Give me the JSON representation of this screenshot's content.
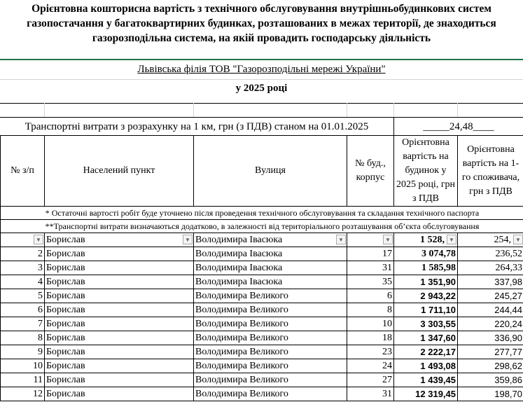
{
  "title": "Орієнтовна кошторисна вартість з технічного обслуговування внутрішньобудинкових систем газопостачання у багатоквартирних будинках, розташованих в межах території, де знаходиться газорозподільна система, на якій провадить господарську діяльність",
  "company": "Львівська  філія ТОВ \"Газорозподільні мережі України\"",
  "year": "у 2025 році",
  "transport": {
    "label": "Транспортні витрати з розрахунку на 1 км, грн (з ПДВ) станом на 01.01.2025",
    "value": "_____24,48____"
  },
  "headers": [
    "№ з/п",
    "Населений пункт",
    "Вулиця",
    "№ буд., корпус",
    "Орієнтовна вартість на будинок у 2025 році, грн з ПДВ",
    "Орієнтовна вартість на 1-го споживача, грн з ПДВ"
  ],
  "notes": [
    "* Остаточні вартості робіт буде уточнено після проведення технічного обслуговування та складання технічного паспорта",
    "**Транспортні витрати визначаються додатково, в залежності від територіального розташування об’єкта обслуговування"
  ],
  "filter_icon": "dropdown-arrow",
  "rows": [
    {
      "n": "",
      "city": "Борислав",
      "street": "Володимира Івасюка",
      "bld": "",
      "total": "1 528,",
      "per": "254,"
    },
    {
      "n": "2",
      "city": "Борислав",
      "street": "Володимира Івасюка",
      "bld": "17",
      "total": "3 074,78",
      "per": "236,52"
    },
    {
      "n": "3",
      "city": "Борислав",
      "street": "Володимира Івасюка",
      "bld": "31",
      "total": "1 585,98",
      "per": "264,33"
    },
    {
      "n": "4",
      "city": "Борислав",
      "street": "Володимира Івасюка",
      "bld": "35",
      "total": "1 351,90",
      "per": "337,98"
    },
    {
      "n": "5",
      "city": "Борислав",
      "street": "Володимира Великого",
      "bld": "6",
      "total": "2 943,22",
      "per": "245,27"
    },
    {
      "n": "6",
      "city": "Борислав",
      "street": "Володимира Великого",
      "bld": "8",
      "total": "1 711,10",
      "per": "244,44"
    },
    {
      "n": "7",
      "city": "Борислав",
      "street": "Володимира Великого",
      "bld": "10",
      "total": "3 303,55",
      "per": "220,24"
    },
    {
      "n": "8",
      "city": "Борислав",
      "street": "Володимира Великого",
      "bld": "18",
      "total": "1 347,60",
      "per": "336,90"
    },
    {
      "n": "9",
      "city": "Борислав",
      "street": "Володимира Великого",
      "bld": "23",
      "total": "2 222,17",
      "per": "277,77"
    },
    {
      "n": "10",
      "city": "Борислав",
      "street": "Володимира Великого",
      "bld": "24",
      "total": "1 493,08",
      "per": "298,62"
    },
    {
      "n": "11",
      "city": "Борислав",
      "street": "Володимира Великого",
      "bld": "27",
      "total": "1 439,45",
      "per": "359,86"
    },
    {
      "n": "12",
      "city": "Борислав",
      "street": "Володимира Великого",
      "bld": "31",
      "total": "12 319,45",
      "per": "198,70"
    }
  ]
}
